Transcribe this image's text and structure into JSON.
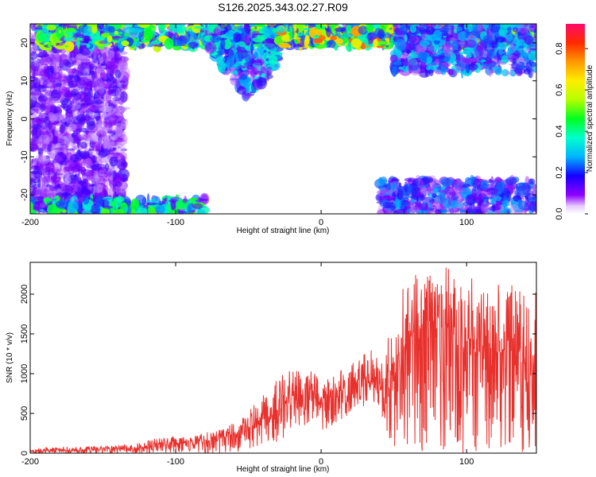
{
  "title": "S126.2025.343.02.27.R09",
  "chart_data": [
    {
      "type": "heatmap",
      "xlabel": "Height of straight line (km)",
      "ylabel": "Frequency (Hz)",
      "xlim": [
        -200,
        148
      ],
      "ylim": [
        -25,
        25
      ],
      "xticks": [
        -200,
        -100,
        0,
        100
      ],
      "yticks": [
        20,
        10,
        0,
        -10,
        -20
      ],
      "colorbar": {
        "label": "Normalized spectral amplitude",
        "range": [
          0,
          0.92
        ],
        "ticks": [
          0.0,
          0.2,
          0.4,
          0.6,
          0.8
        ]
      },
      "features": [
        {
          "x_range": [
            -200,
            -135
          ],
          "y_range": [
            -25,
            25
          ],
          "amplitude": 0.2
        },
        {
          "x_range": [
            -200,
            -80
          ],
          "y_range": [
            -25,
            -21
          ],
          "amplitude": 0.5
        },
        {
          "x_range": [
            40,
            148
          ],
          "y_range": [
            -25,
            -16
          ],
          "amplitude": 0.3
        },
        {
          "x_range": [
            -195,
            148
          ],
          "y_range": [
            19,
            25
          ],
          "amplitude": 0.6
        },
        {
          "x_range": [
            -80,
            -30
          ],
          "y_range": [
            5,
            24
          ],
          "amplitude": 0.4
        },
        {
          "x_range": [
            -30,
            60
          ],
          "y_range": [
            19,
            24
          ],
          "amplitude": 0.75
        },
        {
          "x_range": [
            50,
            148
          ],
          "y_range": [
            12,
            25
          ],
          "amplitude": 0.35
        }
      ]
    },
    {
      "type": "line",
      "xlabel": "Height of straight line (km)",
      "ylabel": "SNR (10 * v/v)",
      "xlim": [
        -200,
        148
      ],
      "ylim": [
        0,
        2400
      ],
      "xticks": [
        -200,
        -100,
        0,
        100
      ],
      "yticks": [
        0,
        500,
        1000,
        1500,
        2000
      ],
      "color": "#e8302c",
      "series": [
        {
          "x": [
            -200,
            -190,
            -180,
            -170,
            -160,
            -150,
            -140,
            -130,
            -120,
            -110,
            -105,
            -100,
            -90,
            -80,
            -70,
            -60,
            -55,
            -50,
            -45,
            -40,
            -35,
            -30,
            -25,
            -20,
            -15,
            -10,
            -5,
            0,
            5,
            10,
            15,
            20,
            25,
            30,
            35,
            40,
            45,
            50,
            55,
            60,
            65,
            70,
            75,
            80,
            85,
            90,
            95,
            100,
            105,
            110,
            115,
            120,
            125,
            130,
            135,
            140,
            145,
            148
          ],
          "y": [
            30,
            35,
            40,
            40,
            45,
            50,
            55,
            60,
            80,
            110,
            150,
            120,
            130,
            150,
            180,
            230,
            260,
            320,
            380,
            420,
            480,
            560,
            620,
            680,
            720,
            760,
            720,
            600,
            700,
            750,
            800,
            880,
            900,
            920,
            900,
            850,
            700,
            1100,
            1300,
            1400,
            1500,
            1600,
            1650,
            1700,
            1600,
            1550,
            1500,
            1450,
            1400,
            1350,
            1300,
            1250,
            1300,
            1250,
            1200,
            1250,
            1200,
            1150
          ],
          "envelope_max": [
            60,
            70,
            80,
            80,
            90,
            90,
            100,
            110,
            160,
            200,
            240,
            210,
            220,
            260,
            300,
            400,
            450,
            550,
            650,
            750,
            850,
            950,
            1000,
            1050,
            1100,
            1050,
            1100,
            950,
            1000,
            1050,
            1100,
            1150,
            1200,
            1250,
            1300,
            1150,
            1400,
            1950,
            2050,
            2150,
            2300,
            2250,
            2400,
            2350,
            2400,
            2300,
            2300,
            2200,
            2200,
            2150,
            2150,
            2100,
            2200,
            2150,
            2100,
            2000,
            2100,
            2050
          ],
          "envelope_min": [
            0,
            0,
            0,
            0,
            0,
            0,
            0,
            0,
            0,
            0,
            0,
            0,
            0,
            0,
            0,
            10,
            20,
            30,
            50,
            80,
            100,
            150,
            200,
            250,
            300,
            350,
            300,
            200,
            300,
            350,
            400,
            500,
            550,
            600,
            600,
            550,
            250,
            50,
            20,
            10,
            0,
            0,
            0,
            0,
            0,
            0,
            0,
            0,
            0,
            0,
            0,
            0,
            0,
            0,
            0,
            0,
            0,
            0
          ]
        }
      ]
    }
  ]
}
